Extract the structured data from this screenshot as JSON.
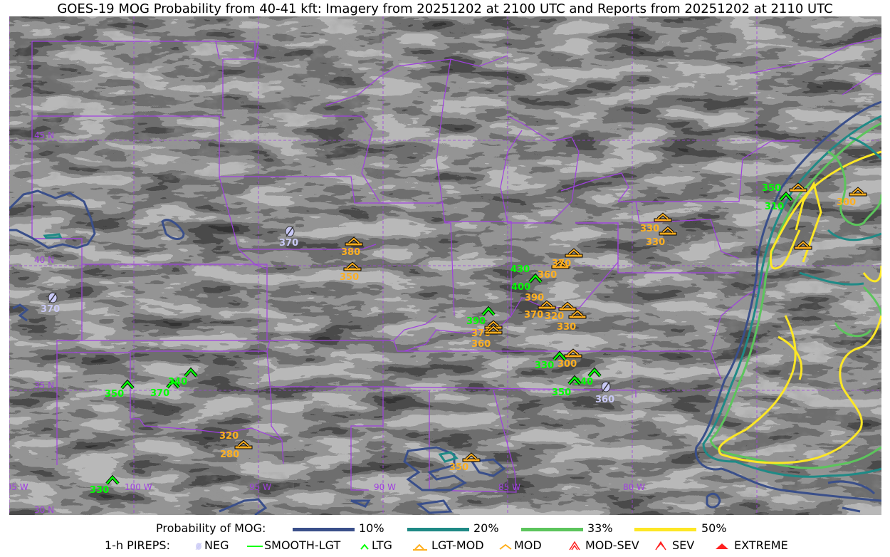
{
  "title": "GOES-19 MOG Probability from 40-41 kft: Imagery from 20251202 at 2100 UTC and Reports from 20251202 at 2110 UTC",
  "grid": {
    "lat_labels": [
      "45 N",
      "40 N",
      "35 N",
      "30 N"
    ],
    "lon_labels": [
      "105 W",
      "100 W",
      "95 W",
      "90 W",
      "85 W",
      "80 W"
    ],
    "line_color": "#a040e0"
  },
  "legend": {
    "probability_title": "Probability of MOG:",
    "probability_levels": [
      {
        "label": "10%",
        "color": "#3a4f8a"
      },
      {
        "label": "20%",
        "color": "#1f8a86"
      },
      {
        "label": "33%",
        "color": "#5cc55c"
      },
      {
        "label": "50%",
        "color": "#fde725"
      }
    ],
    "pireps_title": "1-h PIREPS:",
    "pirep_types": [
      {
        "label": "NEG",
        "color": "#c8c8f5",
        "icon": "neg-icon"
      },
      {
        "label": "SMOOTH-LGT",
        "color": "#00ff00",
        "icon": "line-icon"
      },
      {
        "label": "LTG",
        "color": "#00ff00",
        "icon": "caret-icon"
      },
      {
        "label": "LGT-MOD",
        "color": "#ffb020",
        "icon": "caret-bar-icon"
      },
      {
        "label": "MOD",
        "color": "#ffb020",
        "icon": "caret-icon"
      },
      {
        "label": "MOD-SEV",
        "color": "#ff2020",
        "icon": "double-caret-icon"
      },
      {
        "label": "SEV",
        "color": "#ff2020",
        "icon": "double-caret-icon"
      },
      {
        "label": "EXTREME",
        "color": "#ff2020",
        "icon": "triangle-icon"
      }
    ]
  },
  "pireps": [
    {
      "type": "NEG",
      "levels": [
        "370"
      ]
    },
    {
      "type": "NEG",
      "levels": [
        "370"
      ]
    },
    {
      "type": "NEG",
      "levels": [
        "360"
      ]
    },
    {
      "type": "LGT-MOD",
      "levels": [
        "380"
      ]
    },
    {
      "type": "LGT-MOD",
      "levels": [
        "350"
      ]
    },
    {
      "type": "LGT-MOD",
      "levels": []
    },
    {
      "type": "LGT-MOD",
      "levels": [
        "370"
      ]
    },
    {
      "type": "LGT-MOD",
      "levels": [
        "360"
      ]
    },
    {
      "type": "LGT-MOD",
      "levels": [
        "390"
      ]
    },
    {
      "type": "LGT-MOD",
      "levels": [
        "370"
      ]
    },
    {
      "type": "LGT-MOD",
      "levels": [
        "320"
      ]
    },
    {
      "type": "LGT-MOD",
      "levels": [
        "330"
      ]
    },
    {
      "type": "LGT-MOD",
      "levels": [
        "370"
      ]
    },
    {
      "type": "LGT-MOD",
      "levels": [
        "360"
      ]
    },
    {
      "type": "LGT-MOD",
      "levels": [
        "300"
      ]
    },
    {
      "type": "LGT-MOD",
      "levels": [
        "330"
      ]
    },
    {
      "type": "LGT-MOD",
      "levels": [
        "330"
      ]
    },
    {
      "type": "LGT-MOD",
      "levels": []
    },
    {
      "type": "LGT-MOD",
      "levels": [
        "300"
      ]
    },
    {
      "type": "LGT-MOD",
      "levels": []
    },
    {
      "type": "LGT-MOD",
      "levels": [
        "320",
        "280"
      ]
    },
    {
      "type": "LGT-MOD",
      "levels": [
        "350"
      ]
    },
    {
      "type": "LTG",
      "levels": [
        "430",
        "400"
      ]
    },
    {
      "type": "LTG",
      "levels": [
        "390"
      ]
    },
    {
      "type": "LTG",
      "levels": [
        "330"
      ]
    },
    {
      "type": "LTG",
      "levels": [
        "340"
      ]
    },
    {
      "type": "LTG",
      "levels": [
        "350"
      ]
    },
    {
      "type": "LTG",
      "levels": [
        "350"
      ]
    },
    {
      "type": "LTG",
      "levels": [
        "370"
      ]
    },
    {
      "type": "LTG",
      "levels": [
        "340"
      ]
    },
    {
      "type": "LTG",
      "levels": [
        "330"
      ]
    },
    {
      "type": "LTG",
      "levels": [
        "350",
        "310"
      ]
    }
  ]
}
